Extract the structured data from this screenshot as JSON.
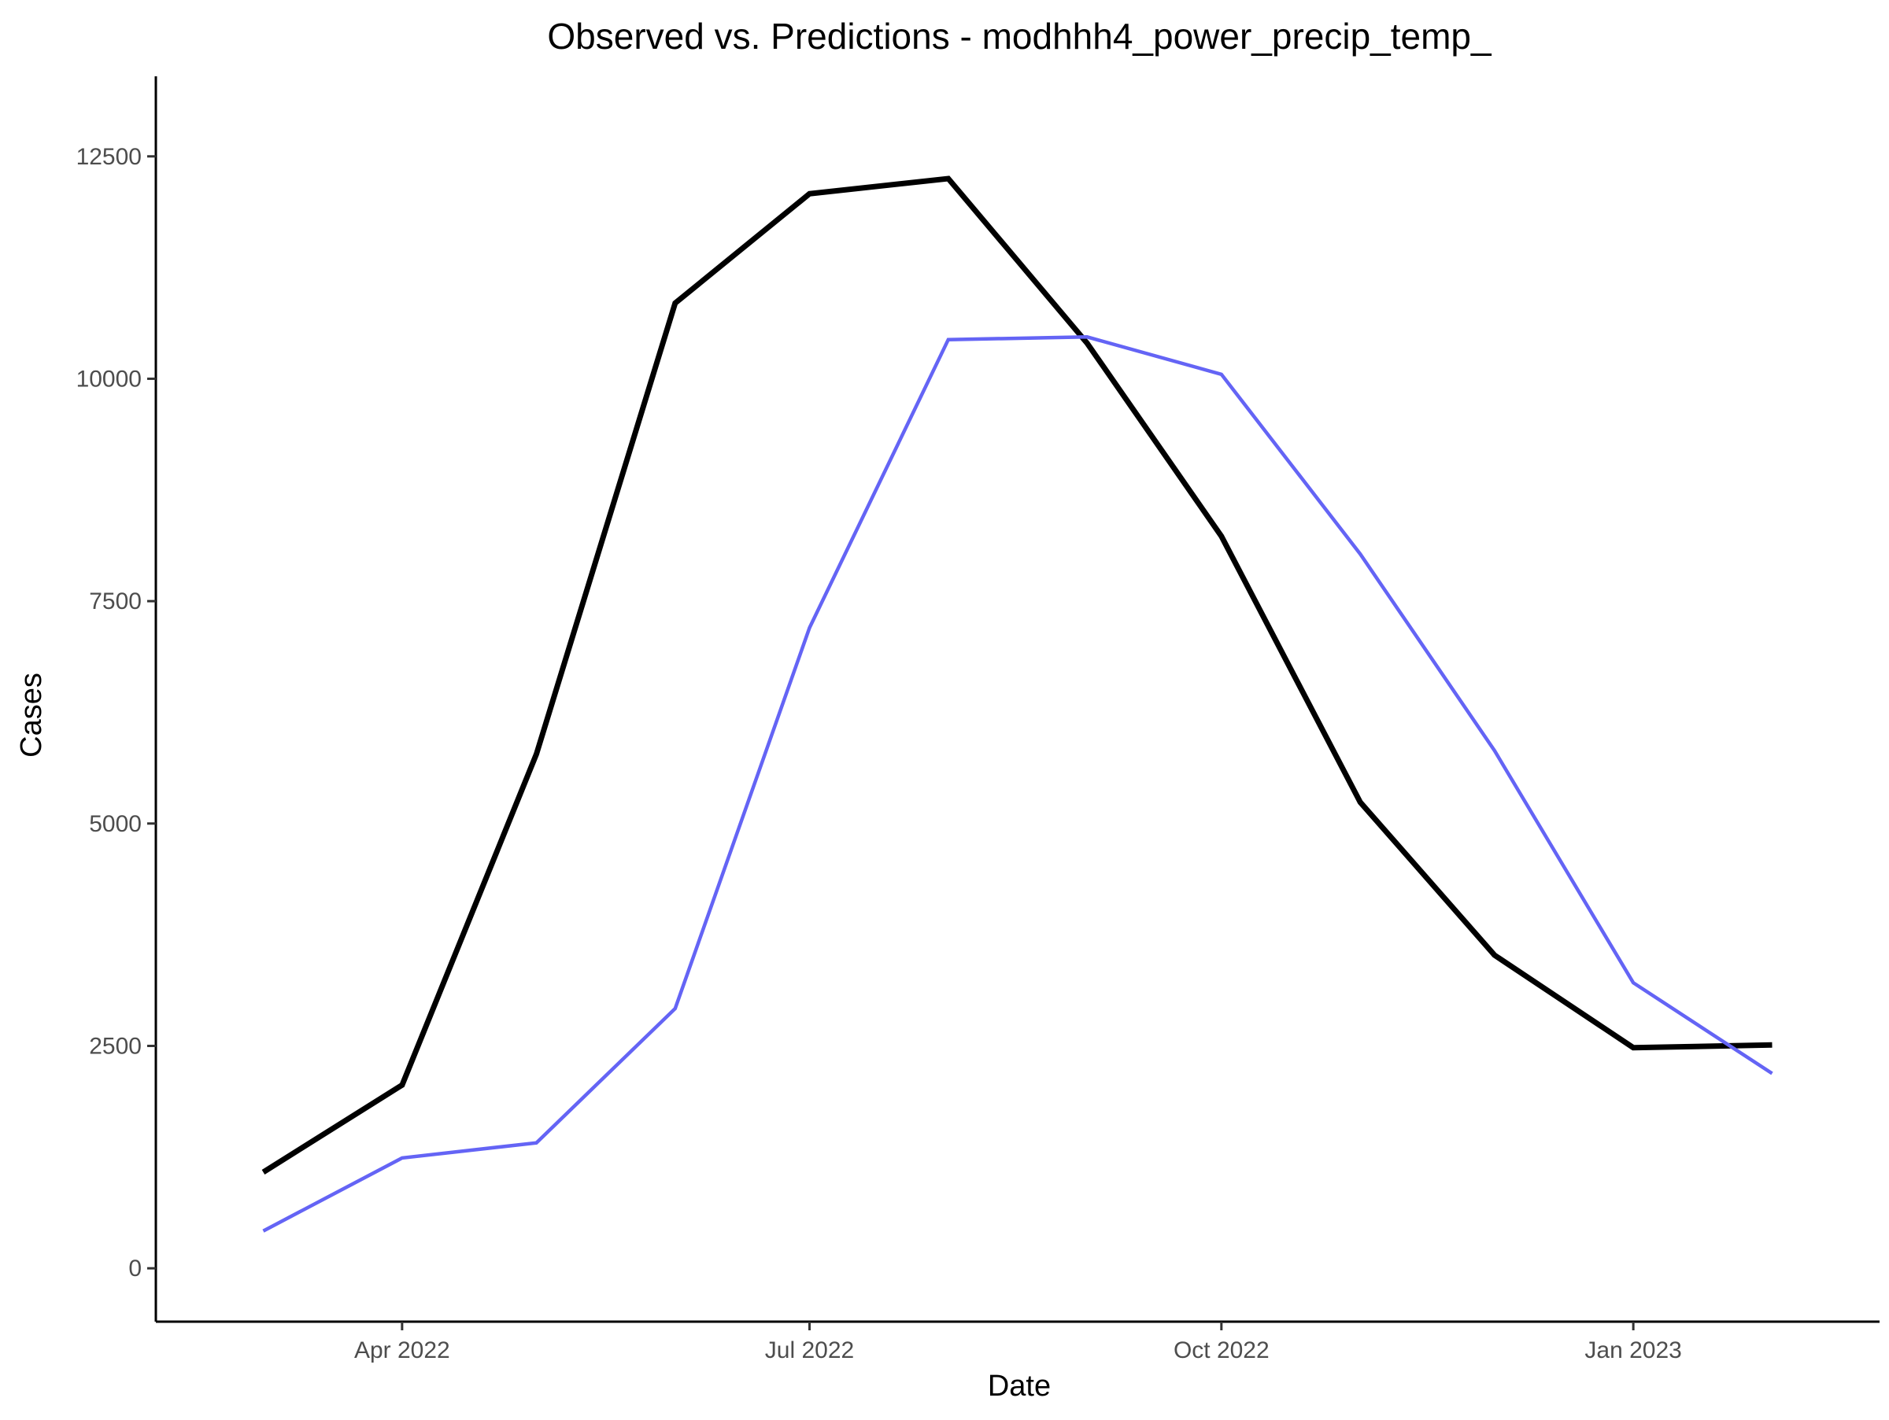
{
  "chart_data": {
    "type": "line",
    "title": "Observed vs. Predictions - modhhh4_power_precip_temp_",
    "xlabel": "Date",
    "ylabel": "Cases",
    "x_type": "date",
    "xlim": [
      "2022-02-05",
      "2023-02-25"
    ],
    "ylim": [
      -600,
      13400
    ],
    "x_ticks": [
      {
        "date": "2022-04-01",
        "label": "Apr 2022"
      },
      {
        "date": "2022-07-01",
        "label": "Jul 2022"
      },
      {
        "date": "2022-10-01",
        "label": "Oct 2022"
      },
      {
        "date": "2023-01-01",
        "label": "Jan 2023"
      }
    ],
    "y_ticks": [
      {
        "value": 0,
        "label": "0"
      },
      {
        "value": 2500,
        "label": "2500"
      },
      {
        "value": 5000,
        "label": "5000"
      },
      {
        "value": 7500,
        "label": "7500"
      },
      {
        "value": 10000,
        "label": "10000"
      },
      {
        "value": 12500,
        "label": "12500"
      }
    ],
    "x": [
      "2022-03-01",
      "2022-04-01",
      "2022-05-01",
      "2022-06-01",
      "2022-07-01",
      "2022-08-01",
      "2022-09-01",
      "2022-10-01",
      "2022-11-01",
      "2022-12-01",
      "2023-01-01",
      "2023-02-01"
    ],
    "series": [
      {
        "color": "#000000",
        "width": 7,
        "values": [
          1080,
          2060,
          5780,
          10850,
          12080,
          12250,
          10400,
          8230,
          5240,
          3520,
          2480,
          2510
        ]
      },
      {
        "color": "#6464f5",
        "width": 4.5,
        "values": [
          420,
          1240,
          1410,
          2920,
          7200,
          10440,
          10470,
          10050,
          8030,
          5820,
          3210,
          2190
        ]
      }
    ],
    "grid": false,
    "legend": "none"
  }
}
